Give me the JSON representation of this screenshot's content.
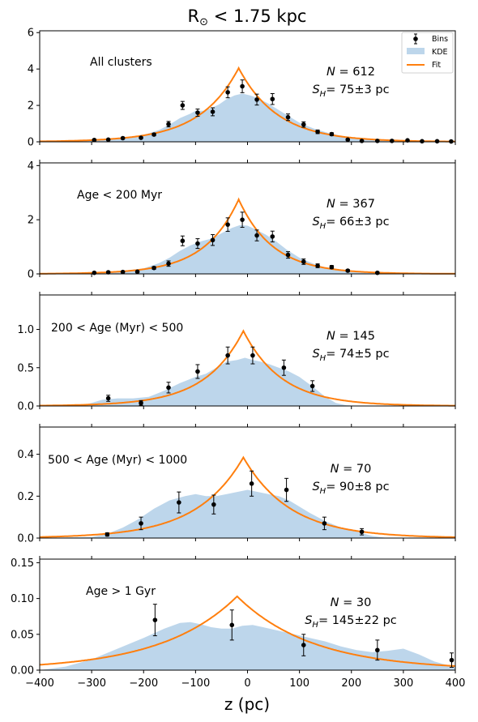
{
  "title": "R⊙ < 1.75 kpc",
  "title_main": "R",
  "title_sub": "⊙",
  "title_rest": " < 1.75 kpc",
  "xlabel": "z (pc)",
  "legend": {
    "bins": "Bins",
    "kde": "KDE",
    "fit": "Fit"
  },
  "colors": {
    "fit": "#ff7f0e",
    "kde": "#9dc3e1",
    "points": "#000000"
  },
  "chart_data": [
    {
      "type": "line",
      "label": "All clusters",
      "N_text": "N = 612",
      "S_text": "= 75±3 pc",
      "xlim": [
        -400,
        400
      ],
      "ylim": [
        0,
        6.1
      ],
      "yticks": [
        0,
        2,
        4,
        6
      ],
      "ytick_labels": [
        "0",
        "2",
        "4",
        "6"
      ],
      "fit": {
        "z0": -17,
        "peak": 4.05,
        "scale_height": 75
      },
      "kde": [
        [
          -400,
          0.02
        ],
        [
          -300,
          0.08
        ],
        [
          -250,
          0.18
        ],
        [
          -200,
          0.38
        ],
        [
          -170,
          0.65
        ],
        [
          -150,
          0.95
        ],
        [
          -130,
          1.3
        ],
        [
          -110,
          1.55
        ],
        [
          -100,
          1.7
        ],
        [
          -85,
          1.7
        ],
        [
          -70,
          1.85
        ],
        [
          -55,
          2.05
        ],
        [
          -40,
          2.35
        ],
        [
          -25,
          2.55
        ],
        [
          -10,
          2.65
        ],
        [
          5,
          2.55
        ],
        [
          20,
          2.4
        ],
        [
          40,
          2.1
        ],
        [
          60,
          1.75
        ],
        [
          80,
          1.4
        ],
        [
          100,
          1.05
        ],
        [
          130,
          0.7
        ],
        [
          160,
          0.45
        ],
        [
          200,
          0.22
        ],
        [
          250,
          0.1
        ],
        [
          300,
          0.05
        ],
        [
          350,
          0.02
        ],
        [
          400,
          0.01
        ]
      ],
      "points": [
        [
          -295,
          0.1,
          0.04
        ],
        [
          -268,
          0.12,
          0.04
        ],
        [
          -240,
          0.2,
          0.05
        ],
        [
          -205,
          0.22,
          0.05
        ],
        [
          -180,
          0.4,
          0.07
        ],
        [
          -152,
          0.97,
          0.15
        ],
        [
          -125,
          2.0,
          0.22
        ],
        [
          -96,
          1.6,
          0.2
        ],
        [
          -67,
          1.65,
          0.22
        ],
        [
          -38,
          2.72,
          0.3
        ],
        [
          -10,
          3.05,
          0.35
        ],
        [
          18,
          2.32,
          0.3
        ],
        [
          48,
          2.35,
          0.3
        ],
        [
          78,
          1.35,
          0.18
        ],
        [
          108,
          0.95,
          0.15
        ],
        [
          135,
          0.55,
          0.1
        ],
        [
          162,
          0.42,
          0.08
        ],
        [
          193,
          0.12,
          0.04
        ],
        [
          220,
          0.05,
          0.03
        ],
        [
          250,
          0.05,
          0.03
        ],
        [
          278,
          0.05,
          0.03
        ],
        [
          308,
          0.08,
          0.03
        ],
        [
          336,
          0.03,
          0.02
        ],
        [
          365,
          0.03,
          0.02
        ],
        [
          392,
          0.02,
          0.02
        ]
      ]
    },
    {
      "type": "line",
      "label": "Age < 200 Myr",
      "N_text": "N = 367",
      "S_text": "= 66±3 pc",
      "xlim": [
        -400,
        400
      ],
      "ylim": [
        0,
        4.1
      ],
      "yticks": [
        0,
        2,
        4
      ],
      "ytick_labels": [
        "0",
        "2",
        "4"
      ],
      "fit": {
        "z0": -17,
        "peak": 2.75,
        "scale_height": 66
      },
      "kde": [
        [
          -400,
          0.01
        ],
        [
          -300,
          0.04
        ],
        [
          -250,
          0.09
        ],
        [
          -200,
          0.2
        ],
        [
          -170,
          0.4
        ],
        [
          -150,
          0.6
        ],
        [
          -130,
          0.85
        ],
        [
          -110,
          1.05
        ],
        [
          -90,
          1.2
        ],
        [
          -70,
          1.3
        ],
        [
          -50,
          1.5
        ],
        [
          -30,
          1.7
        ],
        [
          -15,
          1.8
        ],
        [
          0,
          1.78
        ],
        [
          15,
          1.65
        ],
        [
          35,
          1.45
        ],
        [
          55,
          1.2
        ],
        [
          75,
          0.9
        ],
        [
          100,
          0.6
        ],
        [
          130,
          0.35
        ],
        [
          160,
          0.18
        ],
        [
          200,
          0.07
        ],
        [
          250,
          0.02
        ],
        [
          300,
          0.01
        ],
        [
          400,
          0.0
        ]
      ],
      "points": [
        [
          -295,
          0.04,
          0.02
        ],
        [
          -268,
          0.06,
          0.02
        ],
        [
          -240,
          0.07,
          0.03
        ],
        [
          -212,
          0.08,
          0.03
        ],
        [
          -180,
          0.22,
          0.05
        ],
        [
          -152,
          0.38,
          0.1
        ],
        [
          -125,
          1.22,
          0.18
        ],
        [
          -96,
          1.12,
          0.18
        ],
        [
          -67,
          1.25,
          0.2
        ],
        [
          -38,
          1.82,
          0.25
        ],
        [
          -10,
          2.0,
          0.28
        ],
        [
          18,
          1.42,
          0.2
        ],
        [
          48,
          1.38,
          0.2
        ],
        [
          78,
          0.7,
          0.12
        ],
        [
          108,
          0.45,
          0.1
        ],
        [
          135,
          0.3,
          0.07
        ],
        [
          162,
          0.25,
          0.06
        ],
        [
          193,
          0.12,
          0.04
        ],
        [
          250,
          0.04,
          0.02
        ]
      ]
    },
    {
      "type": "line",
      "label": "200 < Age (Myr) < 500",
      "N_text": "N = 145",
      "S_text": "= 74±5 pc",
      "xlim": [
        -400,
        400
      ],
      "ylim": [
        0,
        1.45
      ],
      "yticks": [
        0,
        0.5,
        1.0
      ],
      "ytick_labels": [
        "0.0",
        "0.5",
        "1.0"
      ],
      "fit": {
        "z0": -8,
        "peak": 0.98,
        "scale_height": 74
      },
      "kde": [
        [
          -400,
          0.0
        ],
        [
          -310,
          0.02
        ],
        [
          -280,
          0.08
        ],
        [
          -250,
          0.1
        ],
        [
          -220,
          0.1
        ],
        [
          -190,
          0.12
        ],
        [
          -160,
          0.2
        ],
        [
          -130,
          0.3
        ],
        [
          -100,
          0.38
        ],
        [
          -80,
          0.42
        ],
        [
          -60,
          0.5
        ],
        [
          -40,
          0.58
        ],
        [
          -20,
          0.6
        ],
        [
          -5,
          0.63
        ],
        [
          10,
          0.6
        ],
        [
          25,
          0.58
        ],
        [
          40,
          0.55
        ],
        [
          60,
          0.5
        ],
        [
          80,
          0.45
        ],
        [
          100,
          0.38
        ],
        [
          120,
          0.28
        ],
        [
          135,
          0.2
        ],
        [
          150,
          0.12
        ],
        [
          170,
          0.04
        ],
        [
          190,
          0.01
        ],
        [
          220,
          0.0
        ],
        [
          400,
          0.0
        ]
      ],
      "points": [
        [
          -268,
          0.1,
          0.04
        ],
        [
          -205,
          0.04,
          0.03
        ],
        [
          -152,
          0.24,
          0.07
        ],
        [
          -96,
          0.45,
          0.09
        ],
        [
          -38,
          0.66,
          0.11
        ],
        [
          10,
          0.66,
          0.11
        ],
        [
          70,
          0.5,
          0.1
        ],
        [
          125,
          0.26,
          0.07
        ]
      ]
    },
    {
      "type": "line",
      "label": "500 < Age (Myr) < 1000",
      "N_text": "N = 70",
      "S_text": "= 90±8 pc",
      "xlim": [
        -400,
        400
      ],
      "ylim": [
        0,
        0.53
      ],
      "yticks": [
        0,
        0.2,
        0.4
      ],
      "ytick_labels": [
        "0.0",
        "0.2",
        "0.4"
      ],
      "fit": {
        "z0": -8,
        "peak": 0.385,
        "scale_height": 90
      },
      "kde": [
        [
          -400,
          0.0
        ],
        [
          -300,
          0.005
        ],
        [
          -270,
          0.02
        ],
        [
          -240,
          0.05
        ],
        [
          -210,
          0.09
        ],
        [
          -180,
          0.14
        ],
        [
          -150,
          0.18
        ],
        [
          -120,
          0.2
        ],
        [
          -100,
          0.21
        ],
        [
          -80,
          0.2
        ],
        [
          -60,
          0.2
        ],
        [
          -40,
          0.21
        ],
        [
          -20,
          0.22
        ],
        [
          0,
          0.23
        ],
        [
          20,
          0.22
        ],
        [
          40,
          0.21
        ],
        [
          60,
          0.2
        ],
        [
          80,
          0.18
        ],
        [
          100,
          0.15
        ],
        [
          120,
          0.12
        ],
        [
          150,
          0.08
        ],
        [
          180,
          0.05
        ],
        [
          210,
          0.03
        ],
        [
          240,
          0.01
        ],
        [
          270,
          0.0
        ],
        [
          400,
          0.0
        ]
      ],
      "points": [
        [
          -270,
          0.017,
          0.008
        ],
        [
          -205,
          0.07,
          0.03
        ],
        [
          -132,
          0.17,
          0.05
        ],
        [
          -65,
          0.16,
          0.045
        ],
        [
          8,
          0.26,
          0.06
        ],
        [
          75,
          0.23,
          0.055
        ],
        [
          148,
          0.07,
          0.03
        ],
        [
          220,
          0.03,
          0.015
        ]
      ]
    },
    {
      "type": "line",
      "label": "Age > 1 Gyr",
      "N_text": "N = 30",
      "S_text": "= 145±22 pc",
      "xlim": [
        -400,
        400
      ],
      "ylim": [
        0,
        0.155
      ],
      "yticks": [
        0,
        0.05,
        0.1,
        0.15
      ],
      "ytick_labels": [
        "0.00",
        "0.05",
        "0.10",
        "0.15"
      ],
      "xticks": [
        -400,
        -300,
        -200,
        -100,
        0,
        100,
        200,
        300,
        400
      ],
      "xtick_labels": [
        "−400",
        "−300",
        "−200",
        "−100",
        "0",
        "100",
        "200",
        "300",
        "400"
      ],
      "fit": {
        "z0": -20,
        "peak": 0.103,
        "scale_height": 145
      },
      "kde": [
        [
          -400,
          0.0
        ],
        [
          -350,
          0.005
        ],
        [
          -300,
          0.015
        ],
        [
          -250,
          0.03
        ],
        [
          -200,
          0.045
        ],
        [
          -160,
          0.058
        ],
        [
          -130,
          0.066
        ],
        [
          -110,
          0.067
        ],
        [
          -90,
          0.064
        ],
        [
          -70,
          0.06
        ],
        [
          -50,
          0.058
        ],
        [
          -30,
          0.058
        ],
        [
          -10,
          0.062
        ],
        [
          10,
          0.063
        ],
        [
          30,
          0.06
        ],
        [
          60,
          0.055
        ],
        [
          90,
          0.05
        ],
        [
          120,
          0.045
        ],
        [
          150,
          0.04
        ],
        [
          180,
          0.033
        ],
        [
          210,
          0.028
        ],
        [
          240,
          0.025
        ],
        [
          270,
          0.027
        ],
        [
          300,
          0.03
        ],
        [
          330,
          0.022
        ],
        [
          360,
          0.012
        ],
        [
          390,
          0.006
        ],
        [
          400,
          0.005
        ]
      ],
      "points": [
        [
          -178,
          0.07,
          0.022
        ],
        [
          -30,
          0.063,
          0.021
        ],
        [
          108,
          0.035,
          0.015
        ],
        [
          250,
          0.028,
          0.014
        ],
        [
          393,
          0.014,
          0.01
        ]
      ]
    }
  ]
}
